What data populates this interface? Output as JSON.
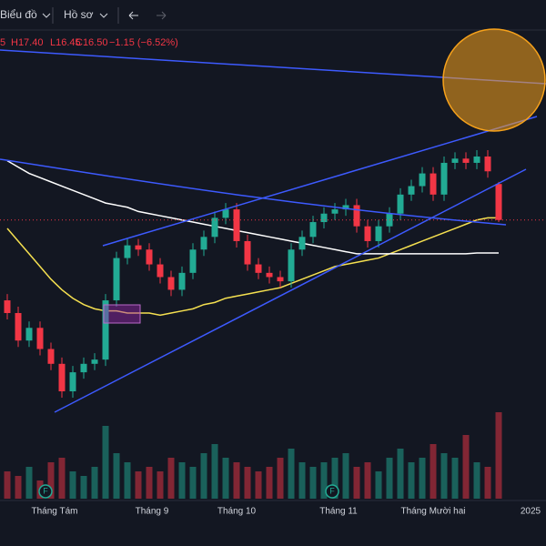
{
  "toolbar": {
    "chart": "Biểu đồ",
    "profile": "Hồ sơ"
  },
  "ohlc_legend": {
    "open": "5",
    "high": "H17.40",
    "low": "L16.45",
    "close": "C16.50",
    "change": "−1.15 (−6.52%)"
  },
  "chart_data": {
    "type": "candlestick",
    "x_labels": [
      "Tháng Tám",
      "Tháng 9",
      "Tháng 10",
      "Tháng 11",
      "Tháng Mười hai",
      "2025"
    ],
    "event_marker": "F",
    "up_color": "#22ab94",
    "down_color": "#f23645",
    "open": [
      14.6,
      14.3,
      13.65,
      13.95,
      13.45,
      13.1,
      12.45,
      12.9,
      13.1,
      13.2,
      14.6,
      15.6,
      15.9,
      15.8,
      15.45,
      15.15,
      14.85,
      15.25,
      15.8,
      16.1,
      16.55,
      16.75,
      16.0,
      15.45,
      15.25,
      15.15,
      15.05,
      15.8,
      16.1,
      16.45,
      16.65,
      16.75,
      16.85,
      16.35,
      16.0,
      16.35,
      16.65,
      17.1,
      17.3,
      17.6,
      17.1,
      17.85,
      17.95,
      17.85,
      18.0,
      17.35
    ],
    "high": [
      14.75,
      14.45,
      14.1,
      14.1,
      13.6,
      13.25,
      13.05,
      13.25,
      13.35,
      14.75,
      15.75,
      16.05,
      16.05,
      15.95,
      15.6,
      15.3,
      15.4,
      15.95,
      16.25,
      16.7,
      16.9,
      16.9,
      16.15,
      15.6,
      15.4,
      15.3,
      15.95,
      16.25,
      16.6,
      16.8,
      16.9,
      17.0,
      17.0,
      16.5,
      16.5,
      16.8,
      17.25,
      17.45,
      17.75,
      17.75,
      18.0,
      18.1,
      18.1,
      18.15,
      18.15,
      17.4
    ],
    "low": [
      14.15,
      13.5,
      13.5,
      13.3,
      12.95,
      12.3,
      12.3,
      12.75,
      12.95,
      13.05,
      14.45,
      15.45,
      15.65,
      15.3,
      15.0,
      14.7,
      14.7,
      15.1,
      15.65,
      15.95,
      16.4,
      15.85,
      15.3,
      15.1,
      15.0,
      14.9,
      14.9,
      15.65,
      15.95,
      16.3,
      16.5,
      16.6,
      16.2,
      15.85,
      15.85,
      16.2,
      16.5,
      16.95,
      17.15,
      16.95,
      16.95,
      17.7,
      17.7,
      17.7,
      17.5,
      16.45
    ],
    "close": [
      14.3,
      13.65,
      13.95,
      13.45,
      13.1,
      12.45,
      12.9,
      13.1,
      13.2,
      14.6,
      15.6,
      15.9,
      15.8,
      15.45,
      15.15,
      14.85,
      15.25,
      15.8,
      16.1,
      16.55,
      16.75,
      16.0,
      15.45,
      15.25,
      15.15,
      15.05,
      15.8,
      16.1,
      16.45,
      16.65,
      16.75,
      16.85,
      16.35,
      16.0,
      16.35,
      16.65,
      17.1,
      17.3,
      17.6,
      17.1,
      17.85,
      17.95,
      17.85,
      18.0,
      17.65,
      16.5
    ],
    "volume": [
      30,
      25,
      35,
      20,
      40,
      45,
      30,
      25,
      35,
      80,
      50,
      40,
      30,
      35,
      30,
      45,
      40,
      35,
      50,
      60,
      45,
      40,
      35,
      30,
      35,
      45,
      55,
      40,
      35,
      40,
      45,
      50,
      35,
      40,
      30,
      45,
      55,
      40,
      45,
      60,
      50,
      45,
      70,
      40,
      35,
      95
    ],
    "moving_averages": [
      {
        "color": "#f5e050",
        "values": [
          16.3,
          16.0,
          15.7,
          15.4,
          15.1,
          14.85,
          14.65,
          14.5,
          14.4,
          14.35,
          14.35,
          14.3,
          14.3,
          14.3,
          14.25,
          14.3,
          14.35,
          14.4,
          14.5,
          14.55,
          14.65,
          14.7,
          14.75,
          14.8,
          14.85,
          14.9,
          15.0,
          15.1,
          15.2,
          15.3,
          15.4,
          15.45,
          15.5,
          15.55,
          15.6,
          15.7,
          15.8,
          15.9,
          16.0,
          16.1,
          16.2,
          16.3,
          16.4,
          16.5,
          16.55,
          16.55
        ]
      },
      {
        "color": "#ffffff",
        "values": [
          17.9,
          17.75,
          17.6,
          17.5,
          17.4,
          17.3,
          17.2,
          17.1,
          17.0,
          16.9,
          16.85,
          16.8,
          16.7,
          16.65,
          16.6,
          16.55,
          16.5,
          16.45,
          16.4,
          16.35,
          16.3,
          16.25,
          16.2,
          16.15,
          16.1,
          16.05,
          16.0,
          15.95,
          15.9,
          15.85,
          15.8,
          15.75,
          15.7,
          15.7,
          15.7,
          15.7,
          15.7,
          15.7,
          15.7,
          15.7,
          15.7,
          15.7,
          15.7,
          15.72,
          15.72,
          15.72
        ]
      }
    ]
  }
}
